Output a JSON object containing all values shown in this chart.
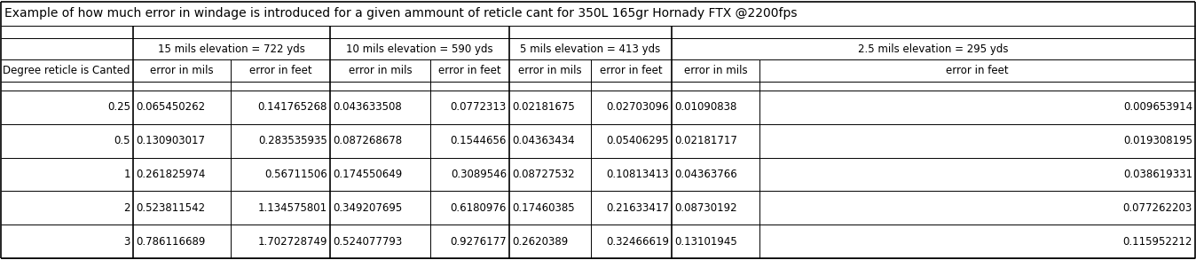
{
  "title": "Example of how much error in windage is introduced for a given ammount of reticle cant for 350L 165gr Hornady FTX @2200fps",
  "col_group_headers": [
    "15 mils elevation = 722 yds",
    "10 mils elevation = 590 yds",
    "5 mils elevation = 413 yds",
    "2.5 mils elevation = 295 yds"
  ],
  "row_header": "Degree reticle is Canted",
  "sub_headers": [
    "error in mils",
    "error in feet"
  ],
  "deg_strs": [
    "0.25",
    "0.5",
    "1",
    "2",
    "3"
  ],
  "data": {
    "15mils": {
      "mils": [
        "0.065450262",
        "0.130903017",
        "0.261825974",
        "0.523811542",
        "0.786116689"
      ],
      "feet": [
        "0.141765268",
        "0.283535935",
        "0.56711506",
        "1.134575801",
        "1.702728749"
      ]
    },
    "10mils": {
      "mils": [
        "0.043633508",
        "0.087268678",
        "0.174550649",
        "0.349207695",
        "0.524077793"
      ],
      "feet": [
        "0.0772313",
        "0.1544656",
        "0.3089546",
        "0.6180976",
        "0.9276177"
      ]
    },
    "5mils": {
      "mils": [
        "0.02181675",
        "0.04363434",
        "0.08727532",
        "0.17460385",
        "0.2620389"
      ],
      "feet": [
        "0.02703096",
        "0.05406295",
        "0.10813413",
        "0.21633417",
        "0.32466619"
      ]
    },
    "2.5mils": {
      "mils": [
        "0.01090838",
        "0.02181717",
        "0.04363766",
        "0.08730192",
        "0.13101945"
      ],
      "feet": [
        "0.009653914",
        "0.019308195",
        "0.038619331",
        "0.077262203",
        "0.115952212"
      ]
    }
  },
  "title_fontsize": 10.0,
  "cell_fontsize": 8.5,
  "group_header_fontsize": 8.5,
  "subheader_fontsize": 8.5
}
